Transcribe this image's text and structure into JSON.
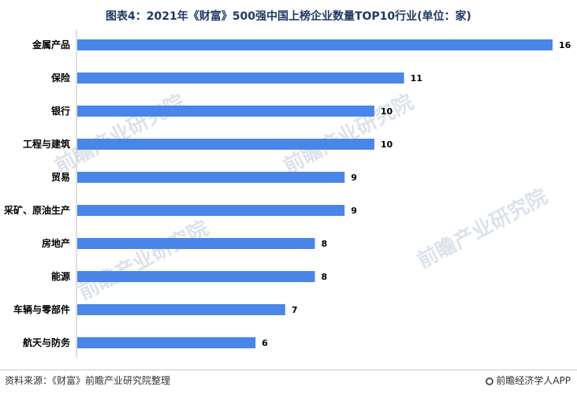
{
  "chart_data": {
    "type": "bar",
    "orientation": "horizontal",
    "title": "图表4：2021年《财富》500强中国上榜企业数量TOP10行业(单位：家)",
    "categories": [
      "金属产品",
      "保险",
      "银行",
      "工程与建筑",
      "贸易",
      "采矿、原油生产",
      "房地产",
      "能源",
      "车辆与零部件",
      "航天与防务"
    ],
    "values": [
      16,
      11,
      10,
      10,
      9,
      9,
      8,
      8,
      7,
      6
    ],
    "xlim": [
      0,
      16
    ],
    "grid": false,
    "bar_color": "#4a86e8"
  },
  "footer": {
    "source": "资料来源：《财富》前瞻产业研究院整理",
    "brand": "前瞻经济学人APP"
  },
  "watermark": "前瞻产业研究院"
}
